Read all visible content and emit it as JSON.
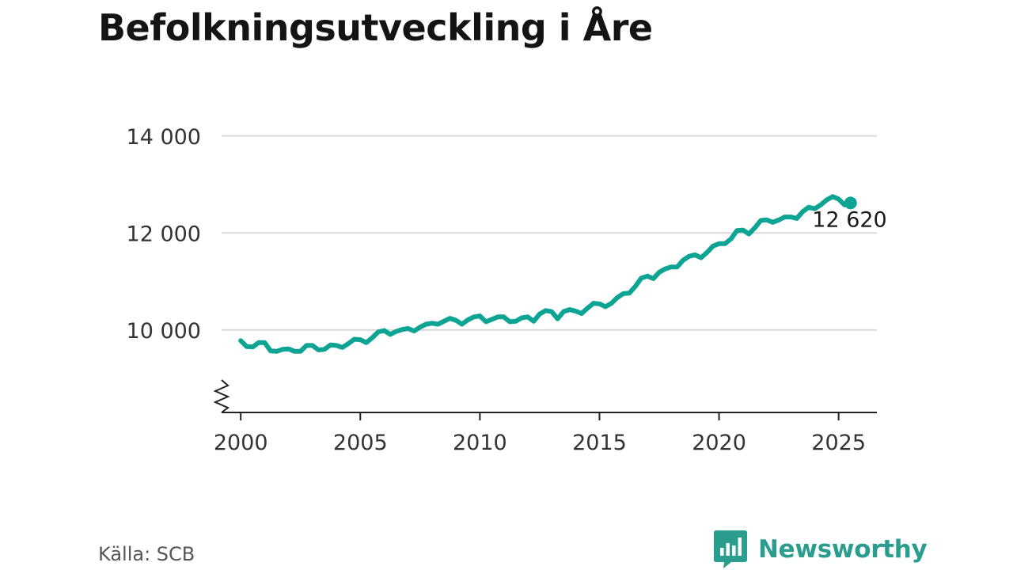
{
  "title": "Befolkningsutveckling i Åre",
  "source": "Källa: SCB",
  "brand": {
    "name": "Newsworthy",
    "color": "#2a9d8f",
    "icon": "bar-chart-speech-bubble-icon"
  },
  "colors": {
    "series": "#0ea494",
    "grid": "#d9d9d9",
    "axis": "#222222"
  },
  "chart_data": {
    "type": "line",
    "title": "Befolkningsutveckling i Åre",
    "xlabel": "",
    "ylabel": "",
    "xlim": [
      1999.2,
      2026.6
    ],
    "ylim": [
      8300,
      14600
    ],
    "y_axis_break": true,
    "grid": "horizontal",
    "xticks": [
      2000,
      2005,
      2010,
      2015,
      2020,
      2025
    ],
    "xtick_labels": [
      "2000",
      "2005",
      "2010",
      "2015",
      "2020",
      "2025"
    ],
    "yticks": [
      10000,
      12000,
      14000
    ],
    "ytick_labels": [
      "10 000",
      "12 000",
      "14 000"
    ],
    "end_label": "12 620",
    "series": [
      {
        "x": [
          2000.0,
          2000.25,
          2000.5,
          2000.75,
          2001.0,
          2001.25,
          2001.5,
          2001.75,
          2002.0,
          2002.25,
          2002.5,
          2002.75,
          2003.0,
          2003.25,
          2003.5,
          2003.75,
          2004.0,
          2004.25,
          2004.5,
          2004.75,
          2005.0,
          2005.25,
          2005.5,
          2005.75,
          2006.0,
          2006.25,
          2006.5,
          2006.75,
          2007.0,
          2007.25,
          2007.5,
          2007.75,
          2008.0,
          2008.25,
          2008.5,
          2008.75,
          2009.0,
          2009.25,
          2009.5,
          2009.75,
          2010.0,
          2010.25,
          2010.5,
          2010.75,
          2011.0,
          2011.25,
          2011.5,
          2011.75,
          2012.0,
          2012.25,
          2012.5,
          2012.75,
          2013.0,
          2013.25,
          2013.5,
          2013.75,
          2014.0,
          2014.25,
          2014.5,
          2014.75,
          2015.0,
          2015.25,
          2015.5,
          2015.75,
          2016.0,
          2016.25,
          2016.5,
          2016.75,
          2017.0,
          2017.25,
          2017.5,
          2017.75,
          2018.0,
          2018.25,
          2018.5,
          2018.75,
          2019.0,
          2019.25,
          2019.5,
          2019.75,
          2020.0,
          2020.25,
          2020.5,
          2020.75,
          2021.0,
          2021.25,
          2021.5,
          2021.75,
          2022.0,
          2022.25,
          2022.5,
          2022.75,
          2023.0,
          2023.25,
          2023.5,
          2023.75,
          2024.0,
          2024.25,
          2024.5,
          2024.75,
          2025.0,
          2025.25,
          2025.5
        ],
        "y": [
          9780,
          9660,
          9650,
          9740,
          9740,
          9570,
          9560,
          9600,
          9610,
          9560,
          9560,
          9680,
          9680,
          9590,
          9600,
          9690,
          9680,
          9640,
          9720,
          9810,
          9800,
          9740,
          9840,
          9960,
          9990,
          9910,
          9970,
          10010,
          10030,
          9980,
          10060,
          10120,
          10140,
          10120,
          10180,
          10240,
          10200,
          10120,
          10210,
          10270,
          10290,
          10170,
          10220,
          10270,
          10270,
          10170,
          10180,
          10250,
          10270,
          10180,
          10330,
          10400,
          10380,
          10230,
          10380,
          10420,
          10390,
          10340,
          10450,
          10550,
          10540,
          10480,
          10550,
          10670,
          10750,
          10760,
          10900,
          11070,
          11110,
          11060,
          11190,
          11260,
          11300,
          11300,
          11440,
          11520,
          11550,
          11490,
          11600,
          11730,
          11780,
          11780,
          11880,
          12050,
          12060,
          11980,
          12110,
          12260,
          12270,
          12220,
          12270,
          12330,
          12330,
          12300,
          12440,
          12530,
          12500,
          12580,
          12680,
          12750,
          12700,
          12580,
          12620
        ]
      }
    ]
  }
}
